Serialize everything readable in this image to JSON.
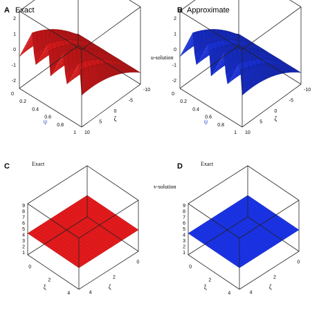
{
  "figure": {
    "row_labels": [
      "u-solution",
      "v-solution"
    ],
    "colors": {
      "exact": "#e41a1c",
      "approximate": "#1a33e6",
      "psi_label": "#3c5bd8"
    }
  },
  "chart_data": [
    {
      "panel": "A",
      "title": "Exact",
      "type": "surface",
      "color": "#e41a1c",
      "z_ticks": [
        "2",
        "1",
        "0",
        "-1",
        "-2"
      ],
      "psi_ticks": [
        "0",
        "0.2",
        "0.4",
        "0.6",
        "0.8",
        "1"
      ],
      "zeta_ticks": [
        "10",
        "5",
        "0",
        "-5",
        "-10"
      ],
      "xlabel": "ψ",
      "ylabel": "ζ",
      "z_range": [
        -2.5,
        2.5
      ]
    },
    {
      "panel": "B",
      "title": "Approximate",
      "type": "surface",
      "color": "#1a33e6",
      "z_ticks": [
        "2",
        "1",
        "0",
        "-1",
        "-2"
      ],
      "psi_ticks": [
        "0",
        "0.2",
        "0.4",
        "0.6",
        "0.8",
        "1"
      ],
      "zeta_ticks": [
        "10",
        "5",
        "0",
        "-5",
        "-10"
      ],
      "xlabel": "ψ",
      "ylabel": "ζ",
      "z_range": [
        -2.5,
        2.5
      ]
    },
    {
      "panel": "C",
      "title": "Exact",
      "type": "surface",
      "color": "#e41a1c",
      "z_ticks": [
        "9",
        "8",
        "7",
        "6",
        "5",
        "4",
        "3",
        "2",
        "1"
      ],
      "xi_ticks": [
        "0",
        "2",
        "4"
      ],
      "zeta_ticks": [
        "0",
        "2",
        "4"
      ],
      "xlabel": "ξ",
      "ylabel": "ζ",
      "z_value": 5
    },
    {
      "panel": "D",
      "title": "Exact",
      "type": "surface",
      "color": "#1a33e6",
      "z_ticks": [
        "9",
        "8",
        "7",
        "6",
        "5",
        "4",
        "3",
        "2",
        "1"
      ],
      "xi_ticks": [
        "0",
        "2",
        "4"
      ],
      "zeta_ticks": [
        "0",
        "2",
        "4"
      ],
      "xlabel": "ξ",
      "ylabel": "ζ",
      "z_value": 5
    }
  ]
}
